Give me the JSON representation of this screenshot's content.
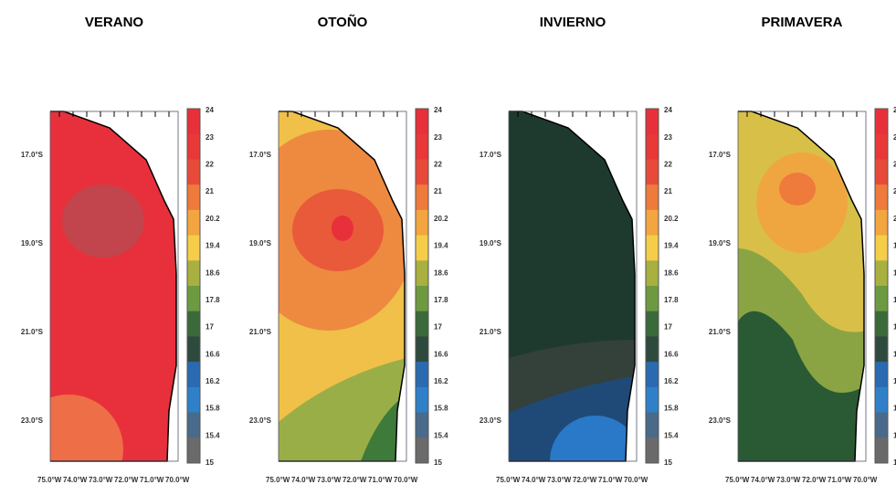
{
  "panels": [
    {
      "title": "VERANO"
    },
    {
      "title": "OTOÑO"
    },
    {
      "title": "INVIERNO"
    },
    {
      "title": "PRIMAVERA"
    }
  ],
  "y_labels": [
    "17.0°S",
    "19.0°S",
    "21.0°S",
    "23.0°S"
  ],
  "x_labels": [
    "75.0°W",
    "74.0°W",
    "73.0°W",
    "72.0°W",
    "71.0°W",
    "70.0°W"
  ],
  "colorbar_labels": [
    "24",
    "23",
    "22",
    "21",
    "20.2",
    "19.4",
    "18.6",
    "17.8",
    "17",
    "16.6",
    "16.2",
    "15.8",
    "15.4",
    "15"
  ]
}
